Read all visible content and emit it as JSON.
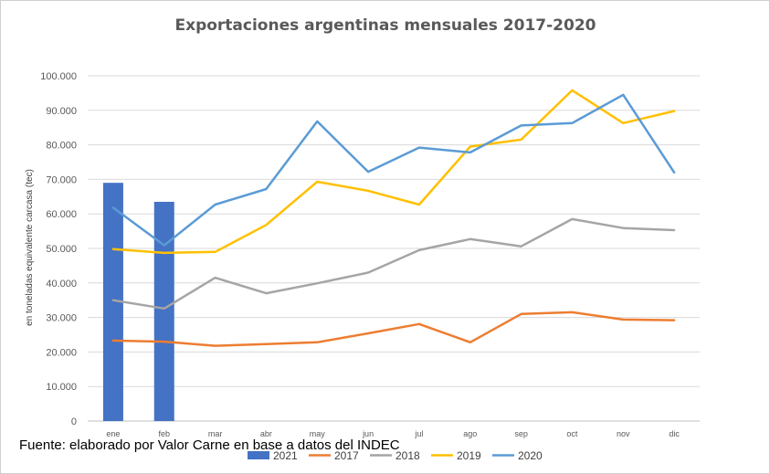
{
  "chart_data": {
    "type": "line",
    "title": "Exportaciones argentinas mensuales 2017-2020",
    "xlabel": "",
    "ylabel": "en toneladas equivalente carcasa (tec)",
    "ylim": [
      0,
      100000
    ],
    "y_ticks": [
      0,
      10000,
      20000,
      30000,
      40000,
      50000,
      60000,
      70000,
      80000,
      90000,
      100000
    ],
    "y_tick_labels": [
      "0",
      "10.000",
      "20.000",
      "30.000",
      "40.000",
      "50.000",
      "60.000",
      "70.000",
      "80.000",
      "90.000",
      "100.000"
    ],
    "grid": true,
    "categories": [
      "ene",
      "feb",
      "mar",
      "abr",
      "may",
      "jun",
      "jul",
      "ago",
      "sep",
      "oct",
      "nov",
      "dic"
    ],
    "bar_series": [
      {
        "name": "2021",
        "color": "#4472c4",
        "values": [
          69000,
          63500,
          null,
          null,
          null,
          null,
          null,
          null,
          null,
          null,
          null,
          null
        ]
      }
    ],
    "series": [
      {
        "name": "2017",
        "color": "#ed7d31",
        "values": [
          23300,
          23000,
          21800,
          22300,
          22800,
          25400,
          28100,
          22800,
          31000,
          31500,
          29400,
          29200
        ]
      },
      {
        "name": "2018",
        "color": "#a5a5a5",
        "values": [
          35000,
          32600,
          41500,
          37000,
          39900,
          43000,
          49500,
          52700,
          50600,
          58500,
          55900,
          55300
        ]
      },
      {
        "name": "2019",
        "color": "#ffc000",
        "values": [
          49800,
          48700,
          49000,
          56800,
          69300,
          66700,
          62700,
          79500,
          81500,
          95800,
          86300,
          89800
        ]
      },
      {
        "name": "2020",
        "color": "#5b9bd5",
        "values": [
          61800,
          50900,
          62700,
          67200,
          86800,
          72200,
          79200,
          77800,
          85600,
          86300,
          94500,
          72000
        ]
      }
    ],
    "legend": {
      "position": "bottom",
      "entries": [
        {
          "label": "2021",
          "color": "#4472c4",
          "kind": "bar"
        },
        {
          "label": "2017",
          "color": "#ed7d31",
          "kind": "line"
        },
        {
          "label": "2018",
          "color": "#a5a5a5",
          "kind": "line"
        },
        {
          "label": "2019",
          "color": "#ffc000",
          "kind": "line"
        },
        {
          "label": "2020",
          "color": "#5b9bd5",
          "kind": "line"
        }
      ]
    }
  },
  "source_note": "Fuente: elaborado por  Valor Carne en base a datos del INDEC"
}
